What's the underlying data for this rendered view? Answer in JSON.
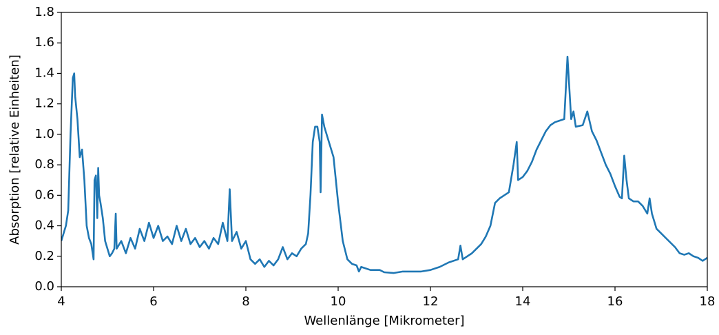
{
  "chart_data": {
    "type": "line",
    "xlabel": "Wellenlänge [Mikrometer]",
    "ylabel": "Absorption [relative Einheiten]",
    "xlim": [
      4,
      18
    ],
    "ylim": [
      0,
      1.8
    ],
    "xticks": [
      4,
      6,
      8,
      10,
      12,
      14,
      16,
      18
    ],
    "yticks": [
      {
        "value": 0,
        "label": "0.0"
      },
      0.2,
      0.4,
      0.6,
      0.8,
      {
        "value": 1,
        "label": "1.0"
      },
      1.2,
      1.4,
      1.6,
      1.8
    ],
    "x": [
      4.0,
      4.1,
      4.15,
      4.2,
      4.25,
      4.28,
      4.3,
      4.35,
      4.4,
      4.45,
      4.5,
      4.55,
      4.6,
      4.65,
      4.7,
      4.72,
      4.75,
      4.78,
      4.8,
      4.82,
      4.85,
      4.9,
      4.95,
      5.0,
      5.05,
      5.1,
      5.15,
      5.18,
      5.2,
      5.3,
      5.4,
      5.5,
      5.6,
      5.7,
      5.8,
      5.9,
      6.0,
      6.1,
      6.2,
      6.3,
      6.4,
      6.5,
      6.6,
      6.7,
      6.8,
      6.9,
      7.0,
      7.1,
      7.2,
      7.3,
      7.4,
      7.5,
      7.6,
      7.65,
      7.7,
      7.8,
      7.9,
      8.0,
      8.1,
      8.2,
      8.3,
      8.4,
      8.5,
      8.6,
      8.7,
      8.8,
      8.9,
      9.0,
      9.1,
      9.2,
      9.3,
      9.35,
      9.4,
      9.45,
      9.5,
      9.55,
      9.6,
      9.62,
      9.65,
      9.7,
      9.8,
      9.9,
      10.0,
      10.1,
      10.2,
      10.3,
      10.4,
      10.45,
      10.5,
      10.7,
      10.9,
      11.0,
      11.2,
      11.4,
      11.6,
      11.8,
      12.0,
      12.2,
      12.4,
      12.6,
      12.65,
      12.7,
      12.9,
      13.1,
      13.2,
      13.3,
      13.4,
      13.5,
      13.6,
      13.7,
      13.8,
      13.87,
      13.9,
      14.0,
      14.1,
      14.2,
      14.3,
      14.4,
      14.5,
      14.6,
      14.7,
      14.8,
      14.9,
      14.97,
      15.05,
      15.1,
      15.15,
      15.3,
      15.4,
      15.5,
      15.6,
      15.7,
      15.8,
      15.9,
      16.0,
      16.1,
      16.15,
      16.2,
      16.25,
      16.3,
      16.4,
      16.5,
      16.6,
      16.7,
      16.75,
      16.8,
      16.9,
      17.0,
      17.1,
      17.2,
      17.3,
      17.4,
      17.5,
      17.6,
      17.7,
      17.8,
      17.9,
      18.0
    ],
    "series": [
      {
        "color": "#1f77b4",
        "values": [
          0.3,
          0.4,
          0.5,
          1.0,
          1.37,
          1.4,
          1.25,
          1.1,
          0.85,
          0.9,
          0.7,
          0.4,
          0.32,
          0.28,
          0.18,
          0.7,
          0.73,
          0.45,
          0.78,
          0.6,
          0.55,
          0.45,
          0.3,
          0.25,
          0.2,
          0.22,
          0.25,
          0.48,
          0.25,
          0.3,
          0.22,
          0.32,
          0.25,
          0.38,
          0.3,
          0.42,
          0.32,
          0.4,
          0.3,
          0.33,
          0.28,
          0.4,
          0.3,
          0.38,
          0.28,
          0.32,
          0.26,
          0.3,
          0.25,
          0.32,
          0.28,
          0.42,
          0.3,
          0.64,
          0.3,
          0.36,
          0.25,
          0.3,
          0.18,
          0.15,
          0.18,
          0.13,
          0.17,
          0.14,
          0.18,
          0.26,
          0.18,
          0.22,
          0.2,
          0.25,
          0.28,
          0.35,
          0.6,
          0.95,
          1.05,
          1.05,
          0.95,
          0.62,
          1.13,
          1.05,
          0.95,
          0.85,
          0.55,
          0.3,
          0.18,
          0.15,
          0.14,
          0.1,
          0.13,
          0.11,
          0.11,
          0.095,
          0.09,
          0.1,
          0.1,
          0.1,
          0.11,
          0.13,
          0.16,
          0.18,
          0.27,
          0.18,
          0.22,
          0.28,
          0.33,
          0.4,
          0.55,
          0.58,
          0.6,
          0.62,
          0.8,
          0.95,
          0.7,
          0.72,
          0.76,
          0.82,
          0.9,
          0.96,
          1.02,
          1.06,
          1.08,
          1.09,
          1.1,
          1.51,
          1.1,
          1.15,
          1.05,
          1.06,
          1.15,
          1.02,
          0.96,
          0.88,
          0.8,
          0.74,
          0.66,
          0.59,
          0.58,
          0.86,
          0.7,
          0.58,
          0.56,
          0.56,
          0.53,
          0.48,
          0.58,
          0.48,
          0.38,
          0.35,
          0.32,
          0.29,
          0.26,
          0.22,
          0.21,
          0.22,
          0.2,
          0.19,
          0.17,
          0.19
        ]
      }
    ]
  }
}
